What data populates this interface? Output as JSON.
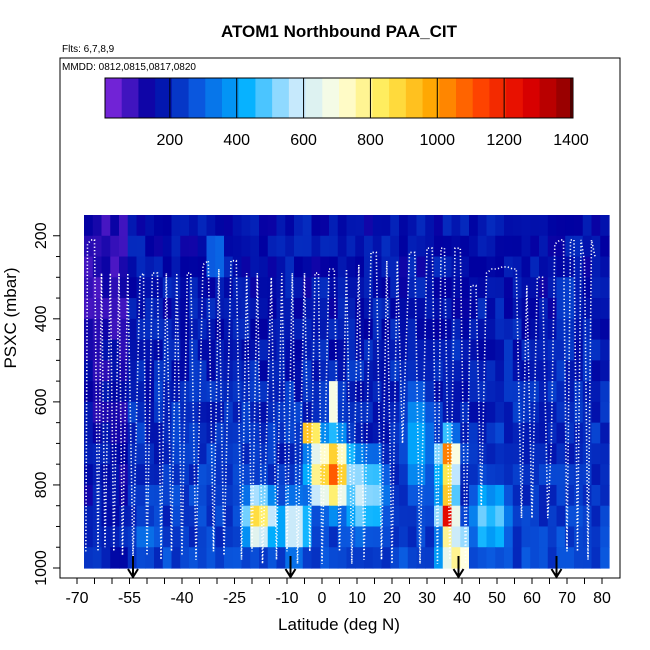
{
  "chart_data": {
    "type": "heatmap",
    "title": "ATOM1 Northbound PAA_CIT",
    "annotations": [
      "Flts: 6,7,8,9",
      "MMDD: 0812,0815,0817,0820"
    ],
    "xlabel": "Latitude (deg N)",
    "ylabel": "PSXC (mbar)",
    "xlim": [
      -70,
      80
    ],
    "ylim": [
      1000,
      150
    ],
    "x_ticks": [
      -70,
      -55,
      -40,
      -25,
      -10,
      0,
      10,
      20,
      30,
      40,
      50,
      60,
      70,
      80
    ],
    "y_ticks": [
      200,
      400,
      600,
      800,
      1000
    ],
    "colorbar": {
      "range": [
        0,
        1400
      ],
      "ticks": [
        200,
        400,
        600,
        800,
        1000,
        1200,
        1400
      ],
      "colors": [
        "#8a2be2",
        "#0000a0",
        "#0a5ae0",
        "#00b0ff",
        "#bfe6ff",
        "#ffffe0",
        "#ffeb50",
        "#ffa500",
        "#ff4500",
        "#e00000",
        "#8b0000"
      ]
    },
    "pressure_levels": [
      150,
      200,
      250,
      300,
      350,
      400,
      450,
      500,
      550,
      600,
      650,
      700,
      750,
      800,
      850,
      900,
      950,
      1000
    ],
    "lat_step": 2.5,
    "lat_start": -68,
    "lat_end": 80,
    "background_value": 120,
    "hotspots": [
      {
        "lat": 36,
        "p": 870,
        "dlat": 3,
        "dp": 80,
        "value": 1350
      },
      {
        "lat": 36,
        "p": 740,
        "dlat": 3.5,
        "dp": 70,
        "value": 1100
      },
      {
        "lat": 38,
        "p": 960,
        "dlat": 5,
        "dp": 60,
        "value": 900
      },
      {
        "lat": 2,
        "p": 770,
        "dlat": 7,
        "dp": 100,
        "value": 1050
      },
      {
        "lat": -3,
        "p": 680,
        "dlat": 3,
        "dp": 40,
        "value": 1150
      },
      {
        "lat": 3,
        "p": 600,
        "dlat": 2,
        "dp": 40,
        "value": 1100
      },
      {
        "lat": -18,
        "p": 880,
        "dlat": 6,
        "dp": 80,
        "value": 800
      },
      {
        "lat": -8,
        "p": 900,
        "dlat": 6,
        "dp": 90,
        "value": 750
      },
      {
        "lat": 12,
        "p": 820,
        "dlat": 8,
        "dp": 130,
        "value": 600
      },
      {
        "lat": -30,
        "p": 250,
        "dlat": 3,
        "dp": 60,
        "value": 420
      },
      {
        "lat": 28,
        "p": 700,
        "dlat": 6,
        "dp": 200,
        "value": 450
      },
      {
        "lat": 48,
        "p": 880,
        "dlat": 8,
        "dp": 120,
        "value": 480
      },
      {
        "lat": 70,
        "p": 350,
        "dlat": 3,
        "dp": 50,
        "value": 380
      },
      {
        "lat": 62,
        "p": 950,
        "dlat": 6,
        "dp": 50,
        "value": 380
      },
      {
        "lat": -50,
        "p": 920,
        "dlat": 10,
        "dp": 80,
        "value": 300
      }
    ],
    "flight_track": [
      [
        -67.5,
        960
      ],
      [
        -67,
        220
      ],
      [
        -66,
        210
      ],
      [
        -65,
        210
      ],
      [
        -64,
        960
      ],
      [
        -63,
        290
      ],
      [
        -62,
        950
      ],
      [
        -60.5,
        290
      ],
      [
        -59.5,
        960
      ],
      [
        -58,
        290
      ],
      [
        -57,
        970
      ],
      [
        -55.5,
        290
      ],
      [
        -54,
        980
      ],
      [
        -52,
        300
      ],
      [
        -51,
        290
      ],
      [
        -50,
        970
      ],
      [
        -48.5,
        290
      ],
      [
        -47,
        290
      ],
      [
        -46,
        980
      ],
      [
        -44.5,
        290
      ],
      [
        -43,
        960
      ],
      [
        -41.5,
        290
      ],
      [
        -40,
        970
      ],
      [
        -38.5,
        290
      ],
      [
        -37.5,
        290
      ],
      [
        -36,
        980
      ],
      [
        -34,
        270
      ],
      [
        -32.5,
        260
      ],
      [
        -31,
        960
      ],
      [
        -29.5,
        280
      ],
      [
        -28,
        970
      ],
      [
        -26,
        260
      ],
      [
        -24.5,
        260
      ],
      [
        -23,
        980
      ],
      [
        -21.5,
        290
      ],
      [
        -20,
        960
      ],
      [
        -18.5,
        290
      ],
      [
        -17,
        990
      ],
      [
        -14.5,
        300
      ],
      [
        -13,
        980
      ],
      [
        -11.5,
        290
      ],
      [
        -10,
        960
      ],
      [
        -8.5,
        290
      ],
      [
        -7,
        990
      ],
      [
        -5,
        290
      ],
      [
        -3.5,
        960
      ],
      [
        -2,
        290
      ],
      [
        -1,
        290
      ],
      [
        0,
        990
      ],
      [
        2,
        280
      ],
      [
        3.5,
        280
      ],
      [
        5,
        960
      ],
      [
        7,
        280
      ],
      [
        8.5,
        990
      ],
      [
        10.5,
        270
      ],
      [
        12,
        980
      ],
      [
        14,
        240
      ],
      [
        15.5,
        240
      ],
      [
        17,
        980
      ],
      [
        18.5,
        260
      ],
      [
        20,
        990
      ],
      [
        21.5,
        260
      ],
      [
        23,
        700
      ],
      [
        25,
        240
      ],
      [
        26.5,
        240
      ],
      [
        28,
        990
      ],
      [
        30,
        230
      ],
      [
        31.5,
        230
      ],
      [
        33,
        990
      ],
      [
        34,
        230
      ],
      [
        35,
        230
      ],
      [
        36.5,
        980
      ],
      [
        38,
        230
      ],
      [
        39.5,
        230
      ],
      [
        41,
        990
      ],
      [
        42.5,
        320
      ],
      [
        44,
        320
      ],
      [
        45.5,
        850
      ],
      [
        47,
        290
      ],
      [
        48.5,
        280
      ],
      [
        50,
        280
      ],
      [
        51.5,
        275
      ],
      [
        53,
        275
      ],
      [
        54.5,
        280
      ],
      [
        55.5,
        280
      ],
      [
        57,
        880
      ],
      [
        58.5,
        320
      ],
      [
        60,
        880
      ],
      [
        61.5,
        300
      ],
      [
        63,
        300
      ],
      [
        64.5,
        880
      ],
      [
        65.5,
        700
      ],
      [
        66.5,
        220
      ],
      [
        68,
        210
      ],
      [
        69,
        210
      ],
      [
        70,
        960
      ],
      [
        71,
        210
      ],
      [
        72,
        210
      ],
      [
        73,
        960
      ],
      [
        74,
        210
      ],
      [
        75,
        260
      ],
      [
        76,
        980
      ],
      [
        77,
        210
      ],
      [
        78,
        250
      ]
    ],
    "arrows": [
      -54,
      -9,
      39,
      67
    ]
  }
}
